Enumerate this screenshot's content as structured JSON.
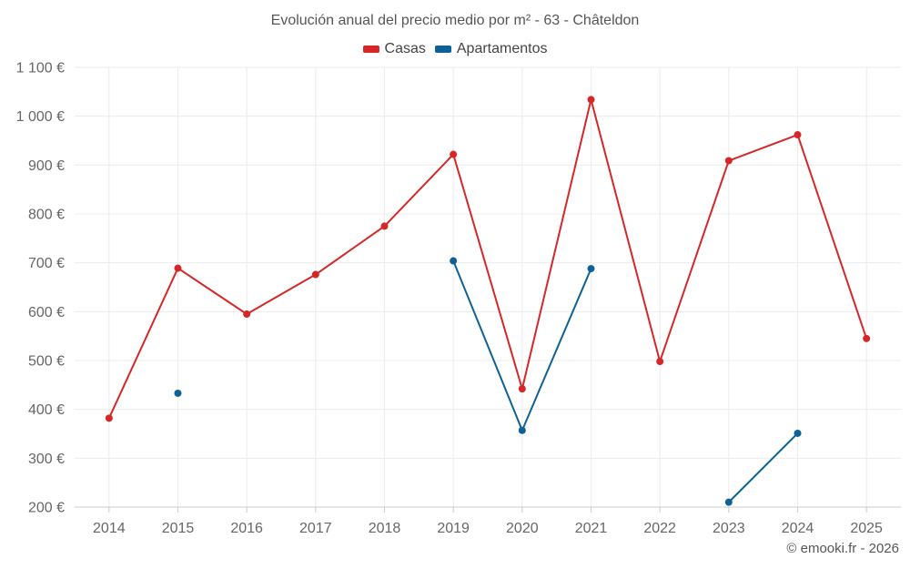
{
  "chart_data": {
    "type": "line",
    "title": "Evolución anual del precio medio por m² - 63 - Châteldon",
    "categories": [
      "2014",
      "2015",
      "2016",
      "2017",
      "2018",
      "2019",
      "2020",
      "2021",
      "2022",
      "2023",
      "2024",
      "2025"
    ],
    "series": [
      {
        "name": "Casas",
        "color": "#d62728",
        "values": [
          382,
          689,
          595,
          676,
          775,
          922,
          442,
          1034,
          498,
          909,
          962,
          545
        ]
      },
      {
        "name": "Apartamentos",
        "color": "#0d6196",
        "values": [
          null,
          433,
          null,
          null,
          null,
          704,
          357,
          688,
          null,
          210,
          351,
          null
        ]
      }
    ],
    "ylim": [
      200,
      1100
    ],
    "yticks": [
      200,
      300,
      400,
      500,
      600,
      700,
      800,
      900,
      1000,
      1100
    ],
    "ytick_labels": [
      "200 €",
      "300 €",
      "400 €",
      "500 €",
      "600 €",
      "700 €",
      "800 €",
      "900 €",
      "1 000 €",
      "1 100 €"
    ],
    "xlabel": "",
    "ylabel": "",
    "grid": true,
    "legend_position": "top-center"
  },
  "credit": "© emooki.fr - 2026"
}
